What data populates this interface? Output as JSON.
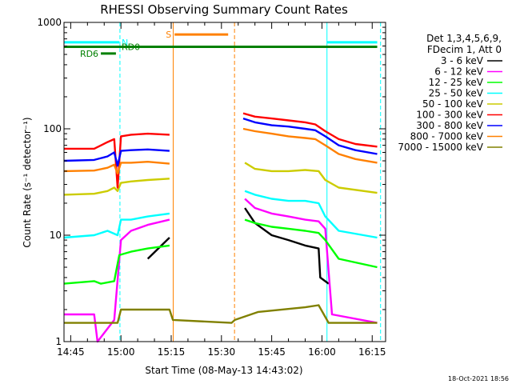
{
  "chart_data": {
    "type": "line",
    "title": "RHESSI Observing Summary Count Rates",
    "xlabel": "Start Time (08-May-13 14:43:02)",
    "ylabel": "Count Rate (s⁻¹ detector⁻¹)",
    "x_unit": "minutes of day",
    "xlim": [
      883,
      979
    ],
    "ylim": [
      1,
      1000
    ],
    "yscale": "log",
    "x_ticks": [
      {
        "t": 885,
        "label": "14:45"
      },
      {
        "t": 900,
        "label": "15:00"
      },
      {
        "t": 915,
        "label": "15:15"
      },
      {
        "t": 930,
        "label": "15:30"
      },
      {
        "t": 945,
        "label": "15:45"
      },
      {
        "t": 960,
        "label": "16:00"
      },
      {
        "t": 975,
        "label": "16:15"
      }
    ],
    "y_ticks": [
      {
        "v": 1,
        "label": "1"
      },
      {
        "v": 10,
        "label": "10"
      },
      {
        "v": 100,
        "label": "100"
      },
      {
        "v": 1000,
        "label": "1000"
      }
    ],
    "legend_header": [
      "Det 1,3,4,5,6,9,",
      "FDecim 1, Att 0"
    ],
    "legend_position": "right",
    "series": [
      {
        "name": "3 - 6 keV",
        "color": "#000000",
        "points": [
          [
            908,
            6
          ],
          [
            914.5,
            9.5
          ],
          [
            932,
            0
          ],
          [
            936,
            0
          ],
          [
            937,
            18
          ],
          [
            940,
            13
          ],
          [
            945,
            10
          ],
          [
            950,
            9
          ],
          [
            955,
            8
          ],
          [
            959,
            7.5
          ],
          [
            959.5,
            4
          ],
          [
            962,
            3.5
          ]
        ]
      },
      {
        "name": "6 - 12 keV",
        "color": "#ff00ff",
        "points": [
          [
            883,
            1.8
          ],
          [
            892,
            1.8
          ],
          [
            893,
            1.0
          ],
          [
            898,
            1.6
          ],
          [
            900,
            9
          ],
          [
            903,
            11
          ],
          [
            908,
            12.5
          ],
          [
            914.5,
            14
          ],
          [
            932,
            0
          ],
          [
            936,
            0
          ],
          [
            937,
            22
          ],
          [
            940,
            18
          ],
          [
            945,
            16
          ],
          [
            950,
            15
          ],
          [
            955,
            14
          ],
          [
            959,
            13.5
          ],
          [
            961,
            11.5
          ],
          [
            963,
            1.8
          ],
          [
            976.5,
            1.5
          ]
        ]
      },
      {
        "name": "12 - 25 keV",
        "color": "#00ff00",
        "points": [
          [
            883,
            3.5
          ],
          [
            892,
            3.7
          ],
          [
            894,
            3.5
          ],
          [
            898,
            3.7
          ],
          [
            899.5,
            6.5
          ],
          [
            903,
            7
          ],
          [
            908,
            7.5
          ],
          [
            914.5,
            8
          ],
          [
            932,
            0
          ],
          [
            936,
            0
          ],
          [
            937,
            14
          ],
          [
            940,
            13
          ],
          [
            945,
            12
          ],
          [
            950,
            11.5
          ],
          [
            955,
            11
          ],
          [
            959,
            10.5
          ],
          [
            961,
            9
          ],
          [
            965,
            6
          ],
          [
            976.5,
            5
          ]
        ]
      },
      {
        "name": "25 - 50 keV",
        "color": "#00ffff",
        "points": [
          [
            883,
            9.5
          ],
          [
            892,
            10
          ],
          [
            896,
            11
          ],
          [
            899,
            10
          ],
          [
            900,
            14
          ],
          [
            903,
            14
          ],
          [
            908,
            15
          ],
          [
            914.5,
            16
          ],
          [
            932,
            0
          ],
          [
            936,
            0
          ],
          [
            937,
            26
          ],
          [
            940,
            24
          ],
          [
            945,
            22
          ],
          [
            950,
            21
          ],
          [
            955,
            21
          ],
          [
            959,
            20
          ],
          [
            961,
            15
          ],
          [
            965,
            11
          ],
          [
            976.5,
            9.5
          ]
        ]
      },
      {
        "name": "50 - 100 keV",
        "color": "#cccc00",
        "points": [
          [
            883,
            24
          ],
          [
            892,
            24.5
          ],
          [
            896,
            26
          ],
          [
            898,
            28
          ],
          [
            899,
            26
          ],
          [
            900,
            31
          ],
          [
            903,
            32
          ],
          [
            908,
            33
          ],
          [
            914.5,
            34
          ],
          [
            932,
            0
          ],
          [
            936,
            0
          ],
          [
            937,
            48
          ],
          [
            940,
            42
          ],
          [
            945,
            40
          ],
          [
            950,
            40
          ],
          [
            955,
            41
          ],
          [
            959,
            40
          ],
          [
            961,
            33
          ],
          [
            965,
            28
          ],
          [
            976.5,
            25
          ]
        ]
      },
      {
        "name": "100 - 300 keV",
        "color": "#ff0000",
        "points": [
          [
            883,
            65
          ],
          [
            892,
            65
          ],
          [
            896,
            75
          ],
          [
            898,
            80
          ],
          [
            899,
            28
          ],
          [
            900,
            85
          ],
          [
            903,
            88
          ],
          [
            908,
            90
          ],
          [
            914.5,
            88
          ],
          [
            932,
            0
          ],
          [
            936,
            0
          ],
          [
            936.5,
            140
          ],
          [
            940,
            130
          ],
          [
            945,
            125
          ],
          [
            950,
            120
          ],
          [
            955,
            115
          ],
          [
            958,
            110
          ],
          [
            961,
            95
          ],
          [
            965,
            80
          ],
          [
            970,
            72
          ],
          [
            976.5,
            68
          ]
        ]
      },
      {
        "name": "300 - 800 keV",
        "color": "#0000ff",
        "points": [
          [
            883,
            50
          ],
          [
            892,
            51
          ],
          [
            896,
            55
          ],
          [
            898,
            60
          ],
          [
            899,
            45
          ],
          [
            900,
            62
          ],
          [
            903,
            63
          ],
          [
            908,
            64
          ],
          [
            914.5,
            62
          ],
          [
            932,
            0
          ],
          [
            936,
            0
          ],
          [
            936.5,
            125
          ],
          [
            940,
            115
          ],
          [
            945,
            108
          ],
          [
            950,
            105
          ],
          [
            955,
            100
          ],
          [
            958,
            97
          ],
          [
            961,
            85
          ],
          [
            965,
            70
          ],
          [
            970,
            63
          ],
          [
            976.5,
            58
          ]
        ]
      },
      {
        "name": "800 - 7000 keV",
        "color": "#ff8000",
        "points": [
          [
            883,
            40
          ],
          [
            892,
            40.5
          ],
          [
            896,
            43
          ],
          [
            898,
            46
          ],
          [
            899,
            38
          ],
          [
            900,
            48
          ],
          [
            903,
            48
          ],
          [
            908,
            49
          ],
          [
            914.5,
            47
          ],
          [
            932,
            0
          ],
          [
            936,
            0
          ],
          [
            936.5,
            100
          ],
          [
            940,
            95
          ],
          [
            945,
            90
          ],
          [
            950,
            85
          ],
          [
            955,
            82
          ],
          [
            958,
            80
          ],
          [
            961,
            70
          ],
          [
            965,
            58
          ],
          [
            970,
            52
          ],
          [
            976.5,
            48
          ]
        ]
      },
      {
        "name": "7000 - 15000 keV",
        "color": "#808000",
        "points": [
          [
            883,
            1.5
          ],
          [
            899,
            1.5
          ],
          [
            900,
            2
          ],
          [
            914.5,
            2
          ],
          [
            915.5,
            1.6
          ],
          [
            933,
            1.5
          ],
          [
            934,
            1.6
          ],
          [
            941,
            1.9
          ],
          [
            955,
            2.1
          ],
          [
            959,
            2.2
          ],
          [
            962,
            1.5
          ],
          [
            976.5,
            1.5
          ]
        ]
      }
    ],
    "annotations": [
      {
        "label": "N",
        "color": "#00ffff",
        "t_start": 883,
        "t_end": 899.5,
        "level": 650
      },
      {
        "label": "",
        "color": "#00ffff",
        "t_start": 961.5,
        "t_end": 976.5,
        "level": 650
      },
      {
        "label": "S",
        "color": "#ff8000",
        "t_start": 916,
        "t_end": 932,
        "level": 770
      },
      {
        "label": "RD0",
        "color": "#008000",
        "t_start": 883,
        "t_end": 976.5,
        "level": 590
      },
      {
        "label": "RD6",
        "color": "#008000",
        "t_start": 894,
        "t_end": 898.5,
        "level": 510
      }
    ],
    "vertical_lines": [
      {
        "t": 899.7,
        "style": "dashed",
        "color": "#00ffff"
      },
      {
        "t": 915.6,
        "style": "solid",
        "color": "#ff8000"
      },
      {
        "t": 933.9,
        "style": "dashed",
        "color": "#ff8000"
      },
      {
        "t": 961.5,
        "style": "solid",
        "color": "#00ffff"
      },
      {
        "t": 977.5,
        "style": "dashed",
        "color": "#00ffff"
      }
    ],
    "footer_timestamp": "18-Oct-2021 18:56"
  }
}
